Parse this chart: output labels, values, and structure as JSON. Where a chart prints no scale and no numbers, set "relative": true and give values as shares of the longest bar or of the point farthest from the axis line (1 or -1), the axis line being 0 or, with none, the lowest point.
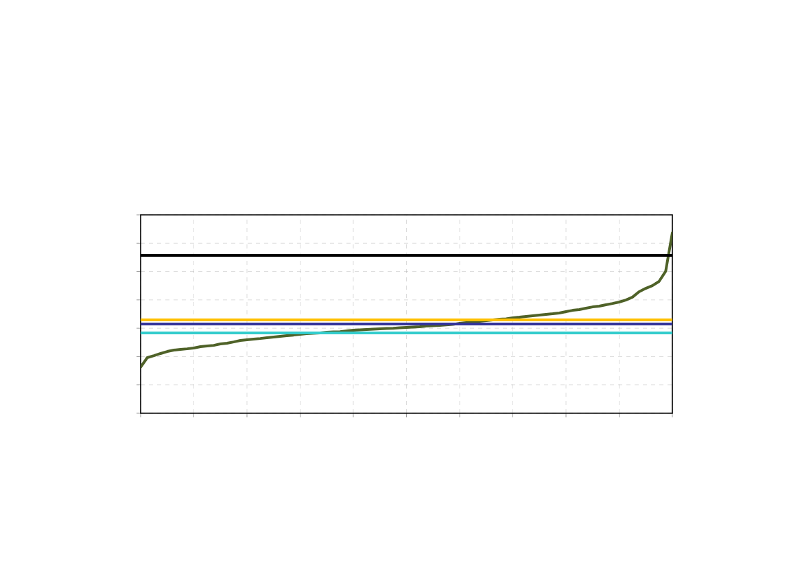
{
  "chart_data": {
    "type": "line",
    "relative": true,
    "grid": true,
    "categories": [
      null,
      null,
      null,
      null,
      null,
      null,
      null,
      null,
      null,
      null,
      null,
      null,
      null,
      null,
      null,
      null,
      null,
      null,
      null,
      null,
      null,
      null,
      null,
      null,
      null,
      null,
      null,
      null,
      null,
      null,
      null,
      null,
      null,
      null,
      null,
      null,
      null,
      null,
      null,
      null,
      null,
      null,
      null,
      null,
      null,
      null,
      null,
      null,
      null,
      null,
      null,
      null,
      null,
      null,
      null,
      null,
      null,
      null,
      null,
      null,
      null,
      null,
      null,
      null,
      null,
      null,
      null,
      null,
      null,
      null,
      null,
      null,
      null,
      null,
      null,
      null,
      null,
      null,
      null,
      null,
      null
    ],
    "series": [
      {
        "color": "#4f6228",
        "values": [
          0.255,
          0.308,
          0.319,
          0.331,
          0.342,
          0.35,
          0.354,
          0.357,
          0.361,
          0.369,
          0.373,
          0.376,
          0.384,
          0.388,
          0.395,
          0.403,
          0.407,
          0.411,
          0.414,
          0.418,
          0.422,
          0.426,
          0.43,
          0.433,
          0.437,
          0.441,
          0.443,
          0.445,
          0.449,
          0.451,
          0.452,
          0.456,
          0.46,
          0.462,
          0.464,
          0.466,
          0.468,
          0.47,
          0.471,
          0.473,
          0.475,
          0.477,
          0.479,
          0.483,
          0.485,
          0.487,
          0.49,
          0.492,
          0.498,
          0.502,
          0.506,
          0.51,
          0.513,
          0.517,
          0.521,
          0.523,
          0.529,
          0.532,
          0.536,
          0.54,
          0.544,
          0.548,
          0.551,
          0.555,
          0.563,
          0.57,
          0.574,
          0.582,
          0.589,
          0.593,
          0.601,
          0.608,
          0.616,
          0.627,
          0.643,
          0.673,
          0.692,
          0.707,
          0.73,
          0.787,
          1
        ]
      },
      {
        "color": "#333399",
        "values": [
          0.494,
          0.494,
          0.494,
          0.494,
          0.494,
          0.494,
          0.494,
          0.494,
          0.494,
          0.494,
          0.494,
          0.494,
          0.494,
          0.494,
          0.494,
          0.494,
          0.494,
          0.494,
          0.494,
          0.494,
          0.494,
          0.494,
          0.494,
          0.494,
          0.494,
          0.494,
          0.494,
          0.494,
          0.494,
          0.494,
          0.494,
          0.494,
          0.494,
          0.494,
          0.494,
          0.494,
          0.494,
          0.494,
          0.494,
          0.494,
          0.494,
          0.494,
          0.494,
          0.494,
          0.494,
          0.494,
          0.494,
          0.494,
          0.494,
          0.494,
          0.494,
          0.494,
          0.494,
          0.494,
          0.494,
          0.494,
          0.494,
          0.494,
          0.494,
          0.494,
          0.494,
          0.494,
          0.494,
          0.494,
          0.494,
          0.494,
          0.494,
          0.494,
          0.494,
          0.494,
          0.494,
          0.494,
          0.494,
          0.494,
          0.494,
          0.494,
          0.494,
          0.494,
          0.494,
          0.494,
          0.494
        ]
      },
      {
        "color": "#33cccc",
        "values": [
          0.445,
          0.445,
          0.445,
          0.445,
          0.445,
          0.445,
          0.445,
          0.445,
          0.445,
          0.445,
          0.445,
          0.445,
          0.445,
          0.445,
          0.445,
          0.445,
          0.445,
          0.445,
          0.445,
          0.445,
          0.445,
          0.445,
          0.445,
          0.445,
          0.445,
          0.445,
          0.445,
          0.445,
          0.445,
          0.445,
          0.445,
          0.445,
          0.445,
          0.445,
          0.445,
          0.445,
          0.445,
          0.445,
          0.445,
          0.445,
          0.445,
          0.445,
          0.445,
          0.445,
          0.445,
          0.445,
          0.445,
          0.445,
          0.445,
          0.445,
          0.445,
          0.445,
          0.445,
          0.445,
          0.445,
          0.445,
          0.445,
          0.445,
          0.445,
          0.445,
          0.445,
          0.445,
          0.445,
          0.445,
          0.445,
          0.445,
          0.445,
          0.445,
          0.445,
          0.445,
          0.445,
          0.445,
          0.445,
          0.445,
          0.445,
          0.445,
          0.445,
          0.445,
          0.445,
          0.445,
          0.445
        ]
      },
      {
        "color": "#000000",
        "values": [
          0.875,
          0.875,
          0.875,
          0.875,
          0.875,
          0.875,
          0.875,
          0.875,
          0.875,
          0.875,
          0.875,
          0.875,
          0.875,
          0.875,
          0.875,
          0.875,
          0.875,
          0.875,
          0.875,
          0.875,
          0.875,
          0.875,
          0.875,
          0.875,
          0.875,
          0.875,
          0.875,
          0.875,
          0.875,
          0.875,
          0.875,
          0.875,
          0.875,
          0.875,
          0.875,
          0.875,
          0.875,
          0.875,
          0.875,
          0.875,
          0.875,
          0.875,
          0.875,
          0.875,
          0.875,
          0.875,
          0.875,
          0.875,
          0.875,
          0.875,
          0.875,
          0.875,
          0.875,
          0.875,
          0.875,
          0.875,
          0.875,
          0.875,
          0.875,
          0.875,
          0.875,
          0.875,
          0.875,
          0.875,
          0.875,
          0.875,
          0.875,
          0.875,
          0.875,
          0.875,
          0.875,
          0.875,
          0.875,
          0.875,
          0.875,
          0.875,
          0.875,
          0.875,
          0.875,
          0.875,
          0.875
        ]
      },
      {
        "color": "#ffc000",
        "values": [
          0.517,
          0.517,
          0.517,
          0.517,
          0.517,
          0.517,
          0.517,
          0.517,
          0.517,
          0.517,
          0.517,
          0.517,
          0.517,
          0.517,
          0.517,
          0.517,
          0.517,
          0.517,
          0.517,
          0.517,
          0.517,
          0.517,
          0.517,
          0.517,
          0.517,
          0.517,
          0.517,
          0.517,
          0.517,
          0.517,
          0.517,
          0.517,
          0.517,
          0.517,
          0.517,
          0.517,
          0.517,
          0.517,
          0.517,
          0.517,
          0.517,
          0.517,
          0.517,
          0.517,
          0.517,
          0.517,
          0.517,
          0.517,
          0.517,
          0.517,
          0.517,
          0.517,
          0.517,
          0.517,
          0.517,
          0.517,
          0.517,
          0.517,
          0.517,
          0.517,
          0.517,
          0.517,
          0.517,
          0.517,
          0.517,
          0.517,
          0.517,
          0.517,
          0.517,
          0.517,
          0.517,
          0.517,
          0.517,
          0.517,
          0.517,
          0.517,
          0.517,
          0.517,
          0.517,
          0.517,
          0.517
        ]
      }
    ]
  }
}
